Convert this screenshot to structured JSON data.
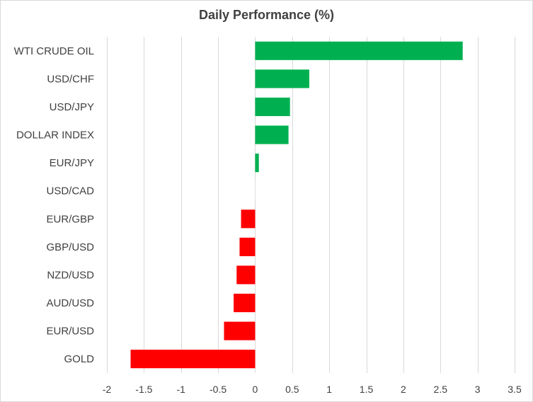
{
  "chart_data": {
    "type": "bar",
    "orientation": "horizontal",
    "title": "Daily Performance  (%)",
    "categories": [
      "WTI CRUDE OIL",
      "USD/CHF",
      "USD/JPY",
      "DOLLAR INDEX",
      "EUR/JPY",
      "USD/CAD",
      "EUR/GBP",
      "GBP/USD",
      "NZD/USD",
      "AUD/USD",
      "EUR/USD",
      "GOLD"
    ],
    "values": [
      2.8,
      0.73,
      0.47,
      0.45,
      0.05,
      0.01,
      -0.19,
      -0.21,
      -0.25,
      -0.29,
      -0.42,
      -1.68
    ],
    "xlim": [
      -2,
      3.5
    ],
    "x_ticks": [
      -2,
      -1.5,
      -1,
      -0.5,
      0,
      0.5,
      1,
      1.5,
      2,
      2.5,
      3,
      3.5
    ],
    "x_tick_labels": [
      "-2",
      "-1.5",
      "-1",
      "-0.5",
      "0",
      "0.5",
      "1",
      "1.5",
      "2",
      "2.5",
      "3",
      "3.5"
    ],
    "grid": "vertical",
    "legend": "none",
    "colors": {
      "positive": "#00b050",
      "negative": "#ff0000",
      "neutral": "#f2f2f2",
      "gridline": "#d9d9d9",
      "text": "#404040"
    }
  }
}
